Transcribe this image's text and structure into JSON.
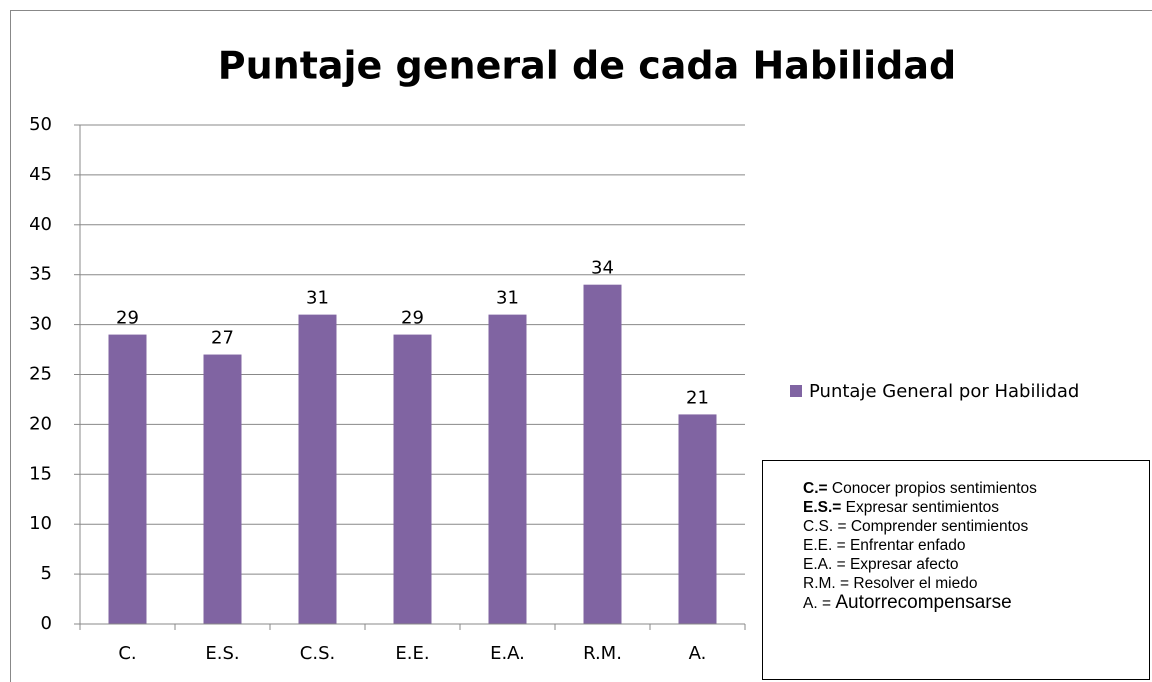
{
  "chart_data": {
    "type": "bar",
    "title": "Puntaje general de cada Habilidad",
    "categories": [
      "C.",
      "E.S.",
      "C.S.",
      "E.E.",
      "E.A.",
      "R.M.",
      "A."
    ],
    "series": [
      {
        "name": "Puntaje General por Habilidad",
        "color": "#8064a2",
        "values": [
          29,
          27,
          31,
          29,
          31,
          34,
          21
        ]
      }
    ],
    "ylim": [
      0,
      50
    ],
    "yticks": [
      0,
      5,
      10,
      15,
      20,
      25,
      30,
      35,
      40,
      45,
      50
    ],
    "grid": true,
    "legend": "right",
    "notes": [
      {
        "term": "C.=",
        "definition": "Conocer propios sentimientos"
      },
      {
        "term": "E.S.=",
        "definition": "Expresar sentimientos"
      },
      {
        "term": "C.S. =",
        "definition": "Comprender sentimientos"
      },
      {
        "term": "E.E. =",
        "definition": "Enfrentar enfado"
      },
      {
        "term": "E.A. =",
        "definition": "Expresar afecto"
      },
      {
        "term": "R.M. =",
        "definition": "Resolver el miedo"
      },
      {
        "term": "A. =",
        "definition": "Autorrecompensarse"
      }
    ]
  }
}
